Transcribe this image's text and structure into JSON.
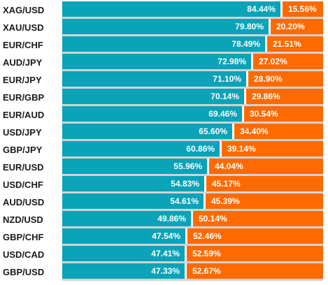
{
  "colors": {
    "long": "#0aa3b8",
    "short": "#ff6a00"
  },
  "rows": [
    {
      "pair": "XAG/USD",
      "long_pct": 84.44,
      "long_label": "84.44%",
      "short_label": "15.56%"
    },
    {
      "pair": "XAU/USD",
      "long_pct": 79.8,
      "long_label": "79.80%",
      "short_label": "20.20%"
    },
    {
      "pair": "EUR/CHF",
      "long_pct": 78.49,
      "long_label": "78.49%",
      "short_label": "21.51%"
    },
    {
      "pair": "AUD/JPY",
      "long_pct": 72.98,
      "long_label": "72.98%",
      "short_label": "27.02%"
    },
    {
      "pair": "EUR/JPY",
      "long_pct": 71.1,
      "long_label": "71.10%",
      "short_label": "28.90%"
    },
    {
      "pair": "EUR/GBP",
      "long_pct": 70.14,
      "long_label": "70.14%",
      "short_label": "29.86%"
    },
    {
      "pair": "EUR/AUD",
      "long_pct": 69.46,
      "long_label": "69.46%",
      "short_label": "30.54%"
    },
    {
      "pair": "USD/JPY",
      "long_pct": 65.6,
      "long_label": "65.60%",
      "short_label": "34.40%"
    },
    {
      "pair": "GBP/JPY",
      "long_pct": 60.86,
      "long_label": "60.86%",
      "short_label": "39.14%"
    },
    {
      "pair": "EUR/USD",
      "long_pct": 55.96,
      "long_label": "55.96%",
      "short_label": "44.04%"
    },
    {
      "pair": "USD/CHF",
      "long_pct": 54.83,
      "long_label": "54.83%",
      "short_label": "45.17%"
    },
    {
      "pair": "AUD/USD",
      "long_pct": 54.61,
      "long_label": "54.61%",
      "short_label": "45.39%"
    },
    {
      "pair": "NZD/USD",
      "long_pct": 49.86,
      "long_label": "49.86%",
      "short_label": "50.14%"
    },
    {
      "pair": "GBP/CHF",
      "long_pct": 47.54,
      "long_label": "47.54%",
      "short_label": "52.46%"
    },
    {
      "pair": "USD/CAD",
      "long_pct": 47.41,
      "long_label": "47.41%",
      "short_label": "52.59%"
    },
    {
      "pair": "GBP/USD",
      "long_pct": 47.33,
      "long_label": "47.33%",
      "short_label": "52.67%"
    }
  ]
}
